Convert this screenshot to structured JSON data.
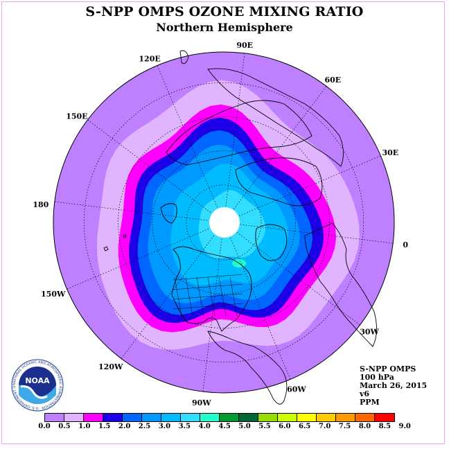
{
  "title": "S-NPP OMPS OZONE MIXING RATIO",
  "subtitle": "Northern Hemisphere",
  "longitude_labels": [
    "0",
    "30E",
    "60E",
    "90E",
    "120E",
    "150E",
    "180",
    "150W",
    "120W",
    "90W",
    "60W",
    "30W"
  ],
  "info": {
    "line1": "S-NPP OMPS",
    "line2": "100 hPa",
    "line3": "March 26, 2015",
    "line4": "v6",
    "line5": "PPM"
  },
  "logo": {
    "text": "NOAA",
    "ring_text": "NATIONAL OCEANIC AND ATMOSPHERIC ADMINISTRATION · U.S. DEPARTMENT OF COMMERCE"
  },
  "colorbar": {
    "labels": [
      "0.0",
      "0.5",
      "1.0",
      "1.5",
      "2.0",
      "2.5",
      "3.0",
      "3.5",
      "4.0",
      "4.5",
      "5.0",
      "5.5",
      "6.0",
      "6.5",
      "7.0",
      "7.5",
      "8.0",
      "8.5",
      "9.0"
    ],
    "colors": [
      "#bf80ff",
      "#e0b4ff",
      "#ff00ff",
      "#1e00e6",
      "#0066ff",
      "#0099ff",
      "#00bbff",
      "#33ddff",
      "#22ffcc",
      "#009933",
      "#006633",
      "#99dd00",
      "#ccff00",
      "#ffff00",
      "#ffcc00",
      "#ff9900",
      "#ff6600",
      "#ff0000",
      "#885533"
    ]
  },
  "map": {
    "ozone_levels_shown": [
      "0.0-0.5",
      "0.5-1.0",
      "1.0-1.5",
      "1.5-2.0",
      "2.0-2.5",
      "2.5-3.0",
      "3.0-3.5",
      "3.5-4.0"
    ],
    "colors": {
      "outer": "#bf80ff",
      "l2": "#e0b4ff",
      "l3": "#ff00ff",
      "l4": "#1e00e6",
      "l5": "#0066ff",
      "l6": "#0099ff",
      "l7": "#00bbff",
      "l8": "#33ddff",
      "spot": "#22ffcc",
      "polar_hole": "#ffffff"
    }
  }
}
